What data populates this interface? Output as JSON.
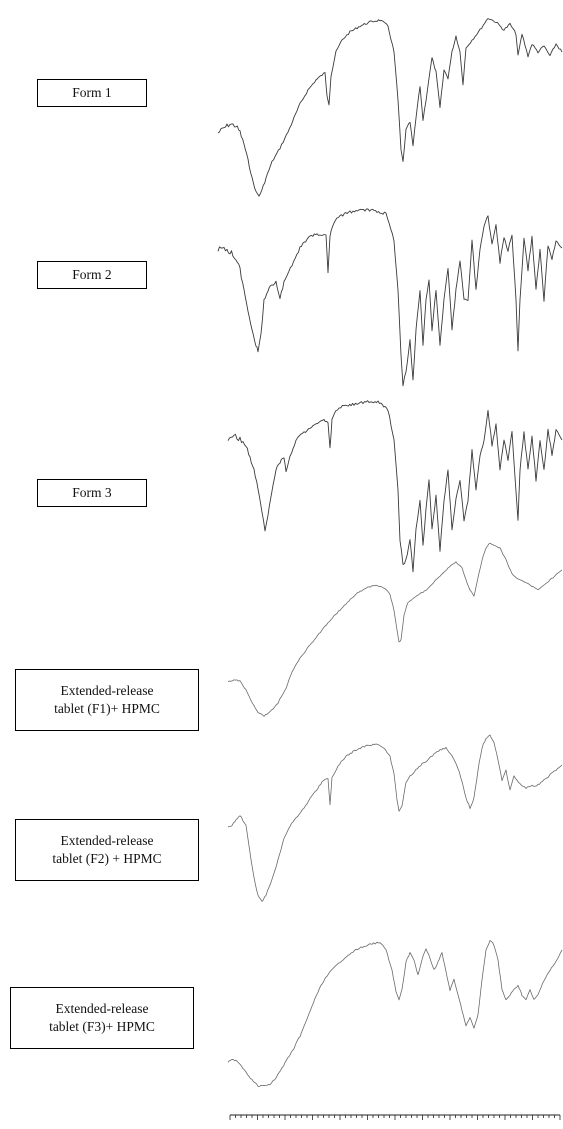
{
  "chart_data": {
    "type": "line",
    "title": "",
    "xlabel": "",
    "ylabel": "",
    "x_range": [
      4000,
      400
    ],
    "stacked": true,
    "grid": false,
    "legend": "none",
    "series": [
      {
        "name": "Form 1",
        "lines": [
          "Form 1"
        ]
      },
      {
        "name": "Form 2",
        "lines": [
          "Form 2"
        ]
      },
      {
        "name": "Form 3",
        "lines": [
          "Form 3"
        ]
      },
      {
        "name": "Extended-release tablet (F1)+ HPMC",
        "lines": [
          "Extended-release",
          "tablet (F1)+ HPMC"
        ]
      },
      {
        "name": "Extended-release tablet (F2) + HPMC",
        "lines": [
          "Extended-release",
          "tablet (F2) + HPMC"
        ]
      },
      {
        "name": "Extended-release tablet (F3)+ HPMC",
        "lines": [
          "Extended-release",
          "tablet (F3)+ HPMC"
        ]
      }
    ]
  }
}
